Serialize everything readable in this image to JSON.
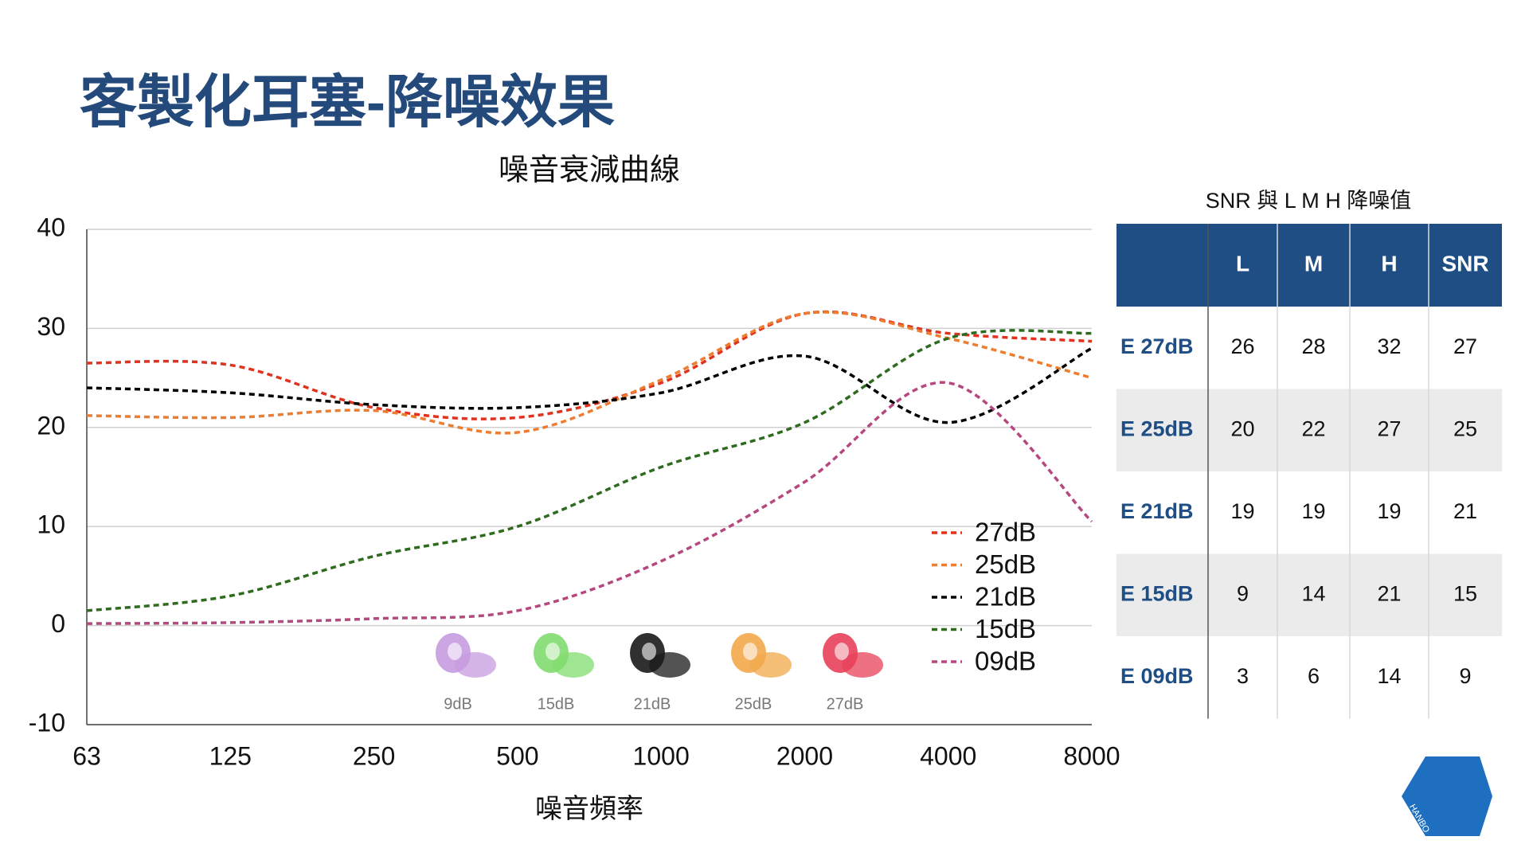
{
  "header": {
    "title": "客製化耳塞-降噪效果"
  },
  "chart_data": {
    "type": "line",
    "title": "噪音衰減曲線",
    "x_label": "噪音頻率",
    "categories": [
      "63",
      "125",
      "250",
      "500",
      "1000",
      "2000",
      "4000",
      "8000"
    ],
    "ylim": [
      -10,
      40
    ],
    "yticks": [
      -10,
      0,
      10,
      20,
      30,
      40
    ],
    "grid": true,
    "series": [
      {
        "name": "27dB",
        "color": "#e0321e",
        "values": [
          26.5,
          26.3,
          22,
          21,
          24.5,
          31.5,
          29.5,
          28.7
        ]
      },
      {
        "name": "25dB",
        "color": "#ed7d31",
        "values": [
          21.2,
          21,
          21.7,
          19.5,
          24.8,
          31.5,
          29,
          25
        ]
      },
      {
        "name": "21dB",
        "color": "#000000",
        "values": [
          24,
          23.5,
          22.3,
          22,
          23.5,
          27.2,
          20.5,
          28
        ]
      },
      {
        "name": "15dB",
        "color": "#2e6b1e",
        "values": [
          1.5,
          3,
          7,
          10,
          16,
          20.5,
          29,
          29.5
        ]
      },
      {
        "name": "09dB",
        "color": "#b5487f",
        "values": [
          0.2,
          0.3,
          0.7,
          1.5,
          6.5,
          14.5,
          24.5,
          10.5
        ]
      }
    ]
  },
  "earplugs": [
    {
      "label": "9dB",
      "color": "#c79be0"
    },
    {
      "label": "15dB",
      "color": "#7fdc6e"
    },
    {
      "label": "21dB",
      "color": "#1a1a1a"
    },
    {
      "label": "25dB",
      "color": "#f2a84a"
    },
    {
      "label": "27dB",
      "color": "#e8405a"
    }
  ],
  "table": {
    "title": "SNR 與 L M H 降噪值",
    "columns": [
      "L",
      "M",
      "H",
      "SNR"
    ],
    "rows": [
      {
        "label": "E 27dB",
        "values": [
          26,
          28,
          32,
          27
        ]
      },
      {
        "label": "E 25dB",
        "values": [
          20,
          22,
          27,
          25
        ]
      },
      {
        "label": "E 21dB",
        "values": [
          19,
          19,
          19,
          21
        ]
      },
      {
        "label": "E 15dB",
        "values": [
          9,
          14,
          21,
          15
        ]
      },
      {
        "label": "E 09dB",
        "values": [
          3,
          6,
          14,
          9
        ]
      }
    ]
  },
  "logo": {
    "text": "HANBO"
  }
}
